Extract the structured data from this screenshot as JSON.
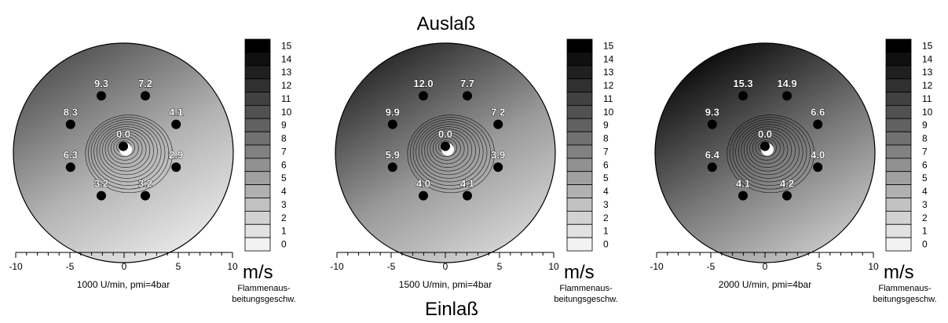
{
  "top_label": "Auslaß",
  "bottom_label": "Einlaß",
  "colors": {
    "scale_light": "#ffffff",
    "scale_dark": "#000000",
    "point": "#000000",
    "label_fill": "#ffffff",
    "label_stroke": "#000000"
  },
  "chart_data": [
    {
      "type": "heatmap",
      "caption": "1000 U/min, pmi=4bar",
      "unit": "m/s",
      "colorbar_title": "Flammenaus-\nbeitungsgeschw.",
      "xlim": [
        -10,
        10
      ],
      "x_ticks": [
        "-10",
        "-5",
        "0",
        "5",
        "10"
      ],
      "colorbar_levels": [
        "15",
        "14",
        "13",
        "12",
        "11",
        "10",
        "9",
        "8",
        "7",
        "6",
        "5",
        "4",
        "3",
        "2",
        "1",
        "0"
      ],
      "points": [
        {
          "x": -2,
          "y": 5.2,
          "value": "9.3"
        },
        {
          "x": 2,
          "y": 5.2,
          "value": "7.2"
        },
        {
          "x": -4.8,
          "y": 2.6,
          "value": "8.3"
        },
        {
          "x": 4.8,
          "y": 2.6,
          "value": "4.1"
        },
        {
          "x": 0,
          "y": 0.6,
          "value": "0.0"
        },
        {
          "x": -4.8,
          "y": -1.3,
          "value": "6.3"
        },
        {
          "x": 4.8,
          "y": -1.3,
          "value": "2.9"
        },
        {
          "x": -2,
          "y": -3.9,
          "value": "3.2"
        },
        {
          "x": 2,
          "y": -3.9,
          "value": "3.2"
        }
      ]
    },
    {
      "type": "heatmap",
      "caption": "1500 U/min, pmi=4bar",
      "unit": "m/s",
      "colorbar_title": "Flammenaus-\nbeitungsgeschw.",
      "xlim": [
        -10,
        10
      ],
      "x_ticks": [
        "-10",
        "-5",
        "0",
        "5",
        "10"
      ],
      "colorbar_levels": [
        "15",
        "14",
        "13",
        "12",
        "11",
        "10",
        "9",
        "8",
        "7",
        "6",
        "5",
        "4",
        "3",
        "2",
        "1",
        "0"
      ],
      "points": [
        {
          "x": -2,
          "y": 5.2,
          "value": "12.0"
        },
        {
          "x": 2,
          "y": 5.2,
          "value": "7.7"
        },
        {
          "x": -4.8,
          "y": 2.6,
          "value": "9.9"
        },
        {
          "x": 4.8,
          "y": 2.6,
          "value": "7.2"
        },
        {
          "x": 0,
          "y": 0.6,
          "value": "0.0"
        },
        {
          "x": -4.8,
          "y": -1.3,
          "value": "5.9"
        },
        {
          "x": 4.8,
          "y": -1.3,
          "value": "3.9"
        },
        {
          "x": -2,
          "y": -3.9,
          "value": "4.0"
        },
        {
          "x": 2,
          "y": -3.9,
          "value": "4.1"
        }
      ]
    },
    {
      "type": "heatmap",
      "caption": "2000 U/min, pmi=4bar",
      "unit": "m/s",
      "colorbar_title": "Flammenaus-\nbeitungsgeschw.",
      "xlim": [
        -10,
        10
      ],
      "x_ticks": [
        "-10",
        "-5",
        "0",
        "5",
        "10"
      ],
      "colorbar_levels": [
        "15",
        "14",
        "13",
        "12",
        "11",
        "10",
        "9",
        "8",
        "7",
        "6",
        "5",
        "4",
        "3",
        "2",
        "1",
        "0"
      ],
      "points": [
        {
          "x": -2,
          "y": 5.2,
          "value": "15.3"
        },
        {
          "x": 2,
          "y": 5.2,
          "value": "14.9"
        },
        {
          "x": -4.8,
          "y": 2.6,
          "value": "9.3"
        },
        {
          "x": 4.8,
          "y": 2.6,
          "value": "6.6"
        },
        {
          "x": 0,
          "y": 0.6,
          "value": "0.0"
        },
        {
          "x": -4.8,
          "y": -1.3,
          "value": "6.4"
        },
        {
          "x": 4.8,
          "y": -1.3,
          "value": "4.0"
        },
        {
          "x": -2,
          "y": -3.9,
          "value": "4.1"
        },
        {
          "x": 2,
          "y": -3.9,
          "value": "4.2"
        }
      ]
    }
  ]
}
